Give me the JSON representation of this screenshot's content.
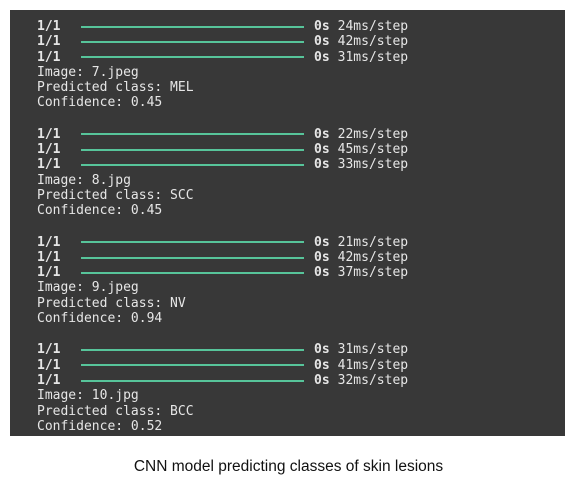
{
  "colors": {
    "terminal_background": "#383838",
    "text": "#e6e6e6",
    "progress_bar": "#57c49a",
    "page_background": "#ffffff"
  },
  "blocks": [
    {
      "steps": [
        {
          "count": "1/1",
          "elapsed": "0s",
          "rate": "24ms/step",
          "progress": 1.0
        },
        {
          "count": "1/1",
          "elapsed": "0s",
          "rate": "42ms/step",
          "progress": 1.0
        },
        {
          "count": "1/1",
          "elapsed": "0s",
          "rate": "31ms/step",
          "progress": 1.0
        }
      ],
      "image": "Image: 7.jpeg",
      "predicted": "Predicted class: MEL",
      "confidence": "Confidence: 0.45"
    },
    {
      "steps": [
        {
          "count": "1/1",
          "elapsed": "0s",
          "rate": "22ms/step",
          "progress": 1.0
        },
        {
          "count": "1/1",
          "elapsed": "0s",
          "rate": "45ms/step",
          "progress": 1.0
        },
        {
          "count": "1/1",
          "elapsed": "0s",
          "rate": "33ms/step",
          "progress": 1.0
        }
      ],
      "image": "Image: 8.jpg",
      "predicted": "Predicted class: SCC",
      "confidence": "Confidence: 0.45"
    },
    {
      "steps": [
        {
          "count": "1/1",
          "elapsed": "0s",
          "rate": "21ms/step",
          "progress": 1.0
        },
        {
          "count": "1/1",
          "elapsed": "0s",
          "rate": "42ms/step",
          "progress": 1.0
        },
        {
          "count": "1/1",
          "elapsed": "0s",
          "rate": "37ms/step",
          "progress": 1.0
        }
      ],
      "image": "Image: 9.jpeg",
      "predicted": "Predicted class: NV",
      "confidence": "Confidence: 0.94"
    },
    {
      "steps": [
        {
          "count": "1/1",
          "elapsed": "0s",
          "rate": "31ms/step",
          "progress": 1.0
        },
        {
          "count": "1/1",
          "elapsed": "0s",
          "rate": "41ms/step",
          "progress": 1.0
        },
        {
          "count": "1/1",
          "elapsed": "0s",
          "rate": "32ms/step",
          "progress": 1.0
        }
      ],
      "image": "Image: 10.jpg",
      "predicted": "Predicted class: BCC",
      "confidence": "Confidence: 0.52"
    }
  ],
  "caption": "CNN model predicting classes of skin lesions"
}
